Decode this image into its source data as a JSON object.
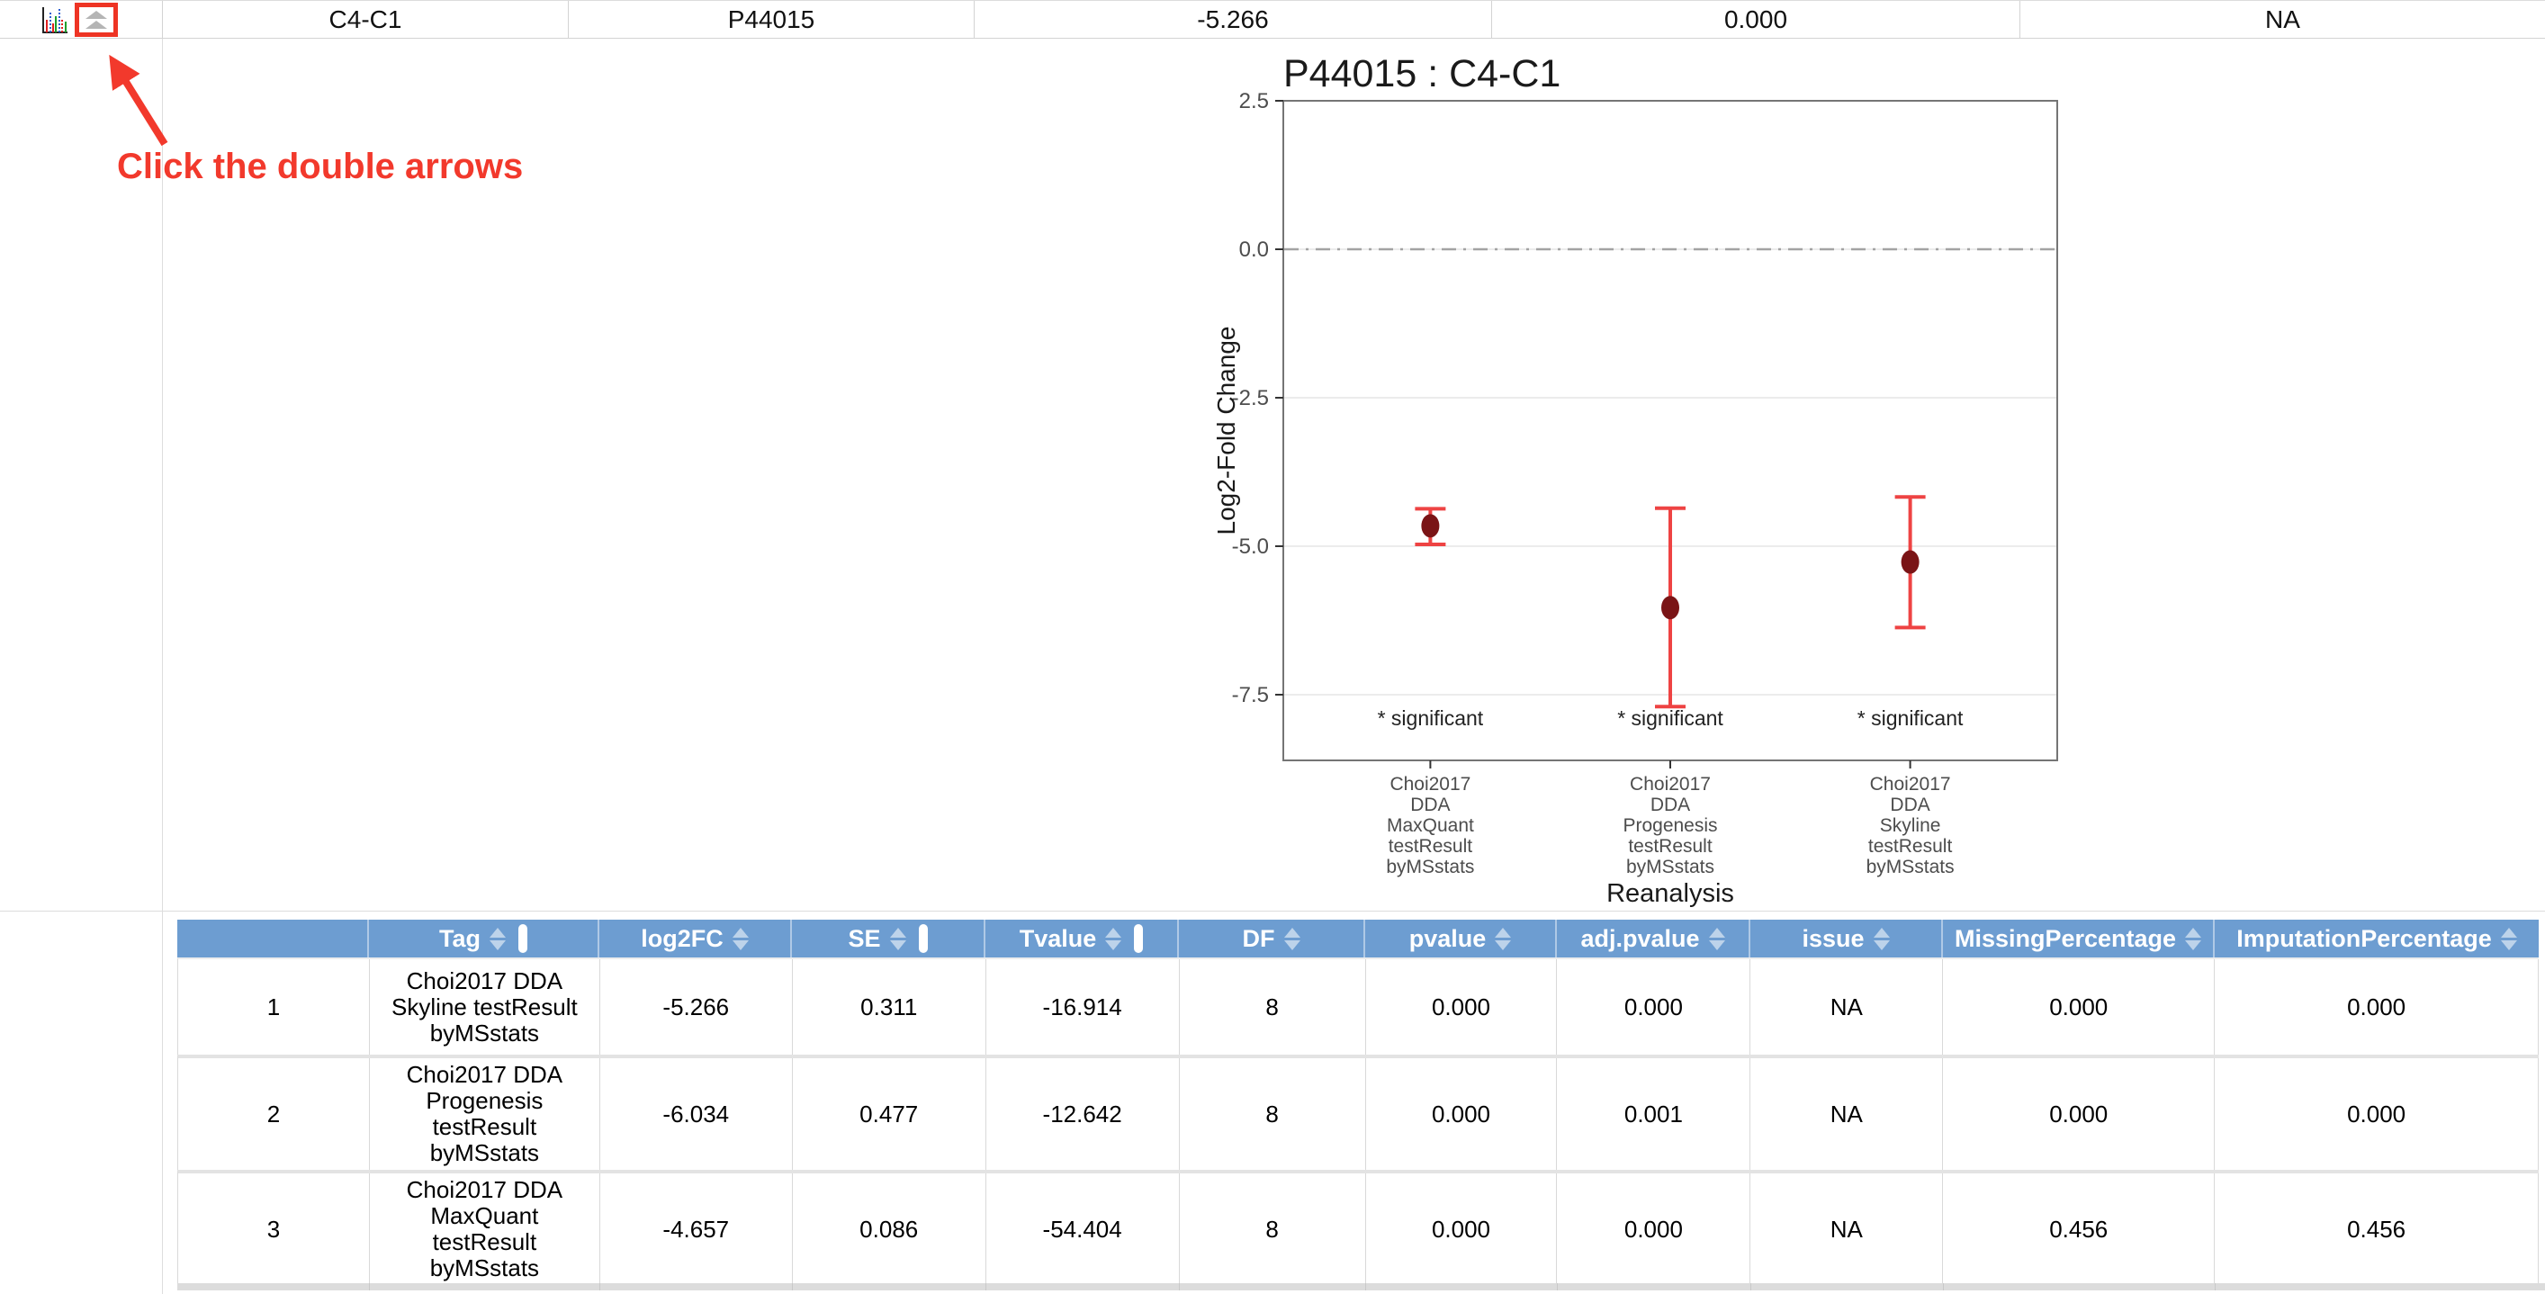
{
  "summary_row": {
    "cells": [
      "C4-C1",
      "P44015",
      "-5.266",
      "0.000",
      "NA"
    ]
  },
  "annotation": {
    "text": "Click the double arrows",
    "color": "#f2392c"
  },
  "chart_data": {
    "type": "scatter",
    "title": "P44015 : C4-C1",
    "xlabel": "Reanalysis",
    "ylabel": "Log2-Fold Change",
    "ylim": [
      -8.6,
      2.5
    ],
    "yticks": [
      "2.5",
      "0.0",
      "-2.5",
      "-5.0",
      "-7.5"
    ],
    "ytick_values": [
      2.5,
      0.0,
      -2.5,
      -5.0,
      -7.5
    ],
    "zero_line": 0,
    "legend": "none",
    "grid": "on",
    "categories": [
      [
        "Choi2017",
        "DDA",
        "MaxQuant",
        "testResult",
        "byMSstats"
      ],
      [
        "Choi2017",
        "DDA",
        "Progenesis",
        "testResult",
        "byMSstats"
      ],
      [
        "Choi2017",
        "DDA",
        "Skyline",
        "testResult",
        "byMSstats"
      ]
    ],
    "points": [
      {
        "mean": -4.657,
        "ci_lower": -4.97,
        "ci_upper": -4.37,
        "label": "* significant"
      },
      {
        "mean": -6.034,
        "ci_lower": -7.7,
        "ci_upper": -4.36,
        "label": "* significant"
      },
      {
        "mean": -5.266,
        "ci_lower": -6.37,
        "ci_upper": -4.17,
        "label": "* significant"
      }
    ],
    "point_color": "#7a1416",
    "errorbar_color": "#ee4343"
  },
  "table": {
    "headers": [
      {
        "label": "",
        "sortable": false,
        "white_bar": false
      },
      {
        "label": "Tag",
        "sortable": true,
        "white_bar": true
      },
      {
        "label": "log2FC",
        "sortable": true,
        "white_bar": false
      },
      {
        "label": "SE",
        "sortable": true,
        "white_bar": true
      },
      {
        "label": "Tvalue",
        "sortable": true,
        "white_bar": true
      },
      {
        "label": "DF",
        "sortable": true,
        "white_bar": false
      },
      {
        "label": "pvalue",
        "sortable": true,
        "white_bar": false
      },
      {
        "label": "adj.pvalue",
        "sortable": true,
        "white_bar": false
      },
      {
        "label": "issue",
        "sortable": true,
        "white_bar": false
      },
      {
        "label": "MissingPercentage",
        "sortable": true,
        "white_bar": false
      },
      {
        "label": "ImputationPercentage",
        "sortable": true,
        "white_bar": false
      }
    ],
    "rows": [
      {
        "num": "1",
        "tag": "Choi2017 DDA Skyline testResult byMSstats",
        "log2FC": "-5.266",
        "SE": "0.311",
        "Tvalue": "-16.914",
        "DF": "8",
        "pvalue": "0.000",
        "adj_pvalue": "0.000",
        "issue": "NA",
        "missing_pct": "0.000",
        "imputation_pct": "0.000"
      },
      {
        "num": "2",
        "tag": "Choi2017 DDA Progenesis testResult byMSstats",
        "log2FC": "-6.034",
        "SE": "0.477",
        "Tvalue": "-12.642",
        "DF": "8",
        "pvalue": "0.000",
        "adj_pvalue": "0.001",
        "issue": "NA",
        "missing_pct": "0.000",
        "imputation_pct": "0.000"
      },
      {
        "num": "3",
        "tag": "Choi2017 DDA MaxQuant testResult byMSstats",
        "log2FC": "-4.657",
        "SE": "0.086",
        "Tvalue": "-54.404",
        "DF": "8",
        "pvalue": "0.000",
        "adj_pvalue": "0.000",
        "issue": "NA",
        "missing_pct": "0.456",
        "imputation_pct": "0.456"
      }
    ]
  },
  "colors": {
    "header_blue": "#6d9dd1",
    "annotation_red": "#f2392c",
    "errorbar_red": "#ee4343",
    "point_dark_red": "#7a1416",
    "gridline": "#ececec",
    "panel_border": "#757575",
    "zero_line_gray": "#a3a3a3",
    "table_border": "#d9d9d9",
    "bottom_bar_gray": "#dcdcdc"
  }
}
